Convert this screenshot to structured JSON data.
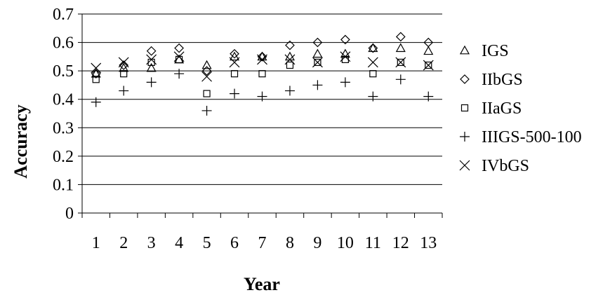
{
  "chart_data": {
    "type": "scatter",
    "xlabel": "Year",
    "ylabel": "Accuracy",
    "categories": [
      "1",
      "2",
      "3",
      "4",
      "5",
      "6",
      "7",
      "8",
      "9",
      "10",
      "11",
      "12",
      "13"
    ],
    "yticks": [
      "0",
      "0.1",
      "0.2",
      "0.3",
      "0.4",
      "0.5",
      "0.6",
      "0.7"
    ],
    "ylim": [
      0,
      0.7
    ],
    "grid": true,
    "legend_position": "right",
    "series": [
      {
        "name": "IGS",
        "marker": "triangle",
        "values": [
          0.49,
          0.51,
          0.51,
          0.54,
          0.52,
          0.55,
          0.55,
          0.55,
          0.56,
          0.56,
          0.58,
          0.58,
          0.57
        ]
      },
      {
        "name": "IIbGS",
        "marker": "diamond",
        "values": [
          0.49,
          0.52,
          0.57,
          0.58,
          0.5,
          0.56,
          0.55,
          0.59,
          0.6,
          0.61,
          0.58,
          0.62,
          0.6
        ]
      },
      {
        "name": "IIaGS",
        "marker": "square",
        "values": [
          0.47,
          0.49,
          0.53,
          0.54,
          0.42,
          0.49,
          0.49,
          0.52,
          0.53,
          0.54,
          0.49,
          0.53,
          0.52
        ]
      },
      {
        "name": "IIIGS-500-100",
        "marker": "plus",
        "values": [
          0.39,
          0.43,
          0.46,
          0.49,
          0.36,
          0.42,
          0.41,
          0.43,
          0.45,
          0.46,
          0.41,
          0.47,
          0.41
        ]
      },
      {
        "name": "IVbGS",
        "marker": "x",
        "values": [
          0.51,
          0.53,
          0.54,
          0.55,
          0.48,
          0.53,
          0.54,
          0.54,
          0.53,
          0.55,
          0.53,
          0.53,
          0.52
        ]
      }
    ]
  }
}
